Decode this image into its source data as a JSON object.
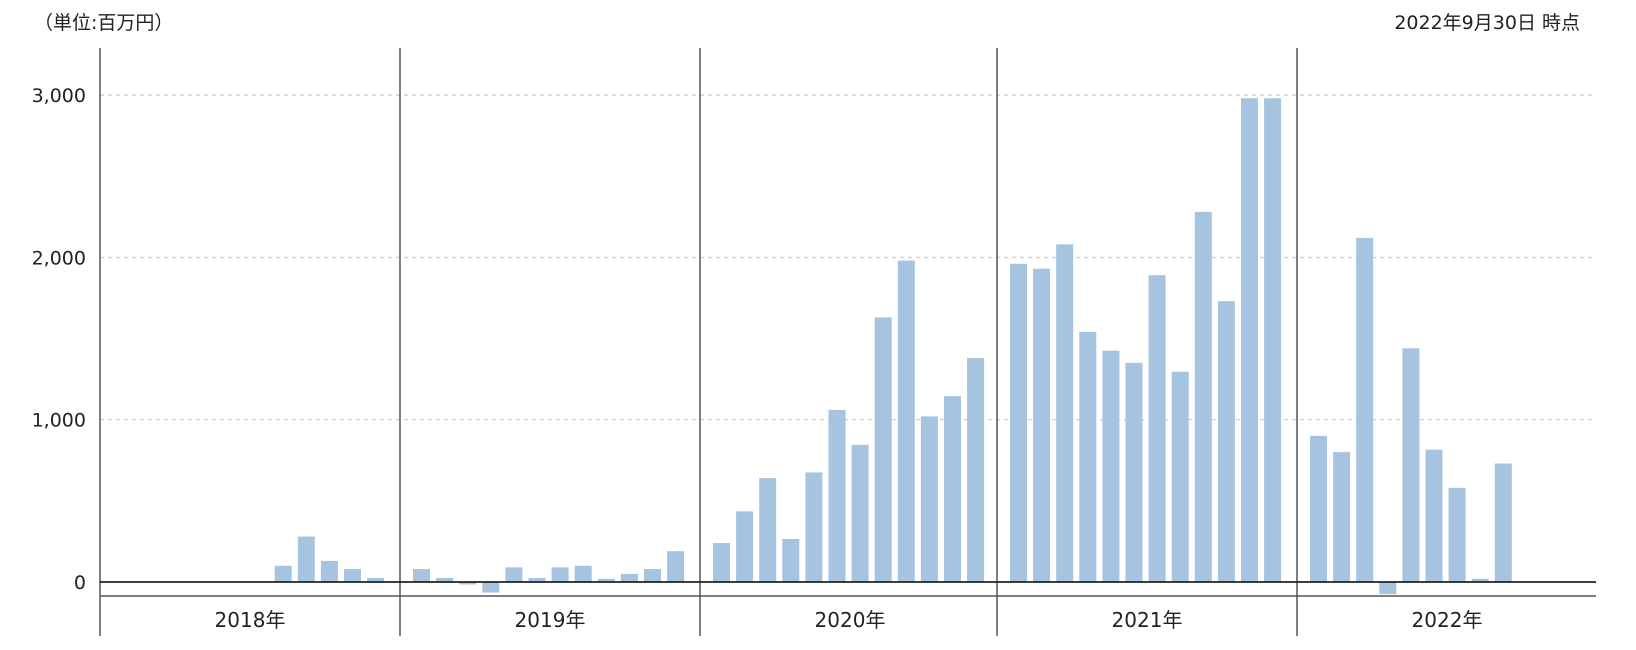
{
  "header": {
    "unit": "（単位:百万円）",
    "as_of": "2022年9月30日 時点"
  },
  "chart_data": {
    "type": "bar",
    "title": "",
    "xlabel": "",
    "ylabel": "",
    "ylim": [
      -100,
      3300
    ],
    "yticks": [
      0,
      1000,
      2000,
      3000
    ],
    "ytick_labels": [
      "0",
      "1,000",
      "2,000",
      "3,000"
    ],
    "grid": "horizontal dashed",
    "colors": {
      "bar": "#a6c3e0",
      "gridline": "#c8c8c8",
      "axis": "#555555",
      "baseline": "#222222"
    },
    "groups": [
      {
        "label": "2018年",
        "values": [
          0,
          0,
          0,
          0,
          0,
          0,
          0,
          100,
          280,
          130,
          80,
          25
        ]
      },
      {
        "label": "2019年",
        "values": [
          80,
          25,
          -15,
          -65,
          90,
          25,
          90,
          100,
          20,
          50,
          80,
          190
        ]
      },
      {
        "label": "2020年",
        "values": [
          240,
          435,
          640,
          265,
          675,
          1060,
          845,
          1630,
          1980,
          1020,
          1145,
          1380
        ]
      },
      {
        "label": "2021年",
        "values": [
          1960,
          1930,
          2080,
          1540,
          1425,
          1350,
          1890,
          1295,
          2280,
          1730,
          2980,
          2980
        ]
      },
      {
        "label": "2022年",
        "values": [
          900,
          800,
          2120,
          -75,
          1440,
          815,
          580,
          20,
          730
        ]
      }
    ]
  }
}
